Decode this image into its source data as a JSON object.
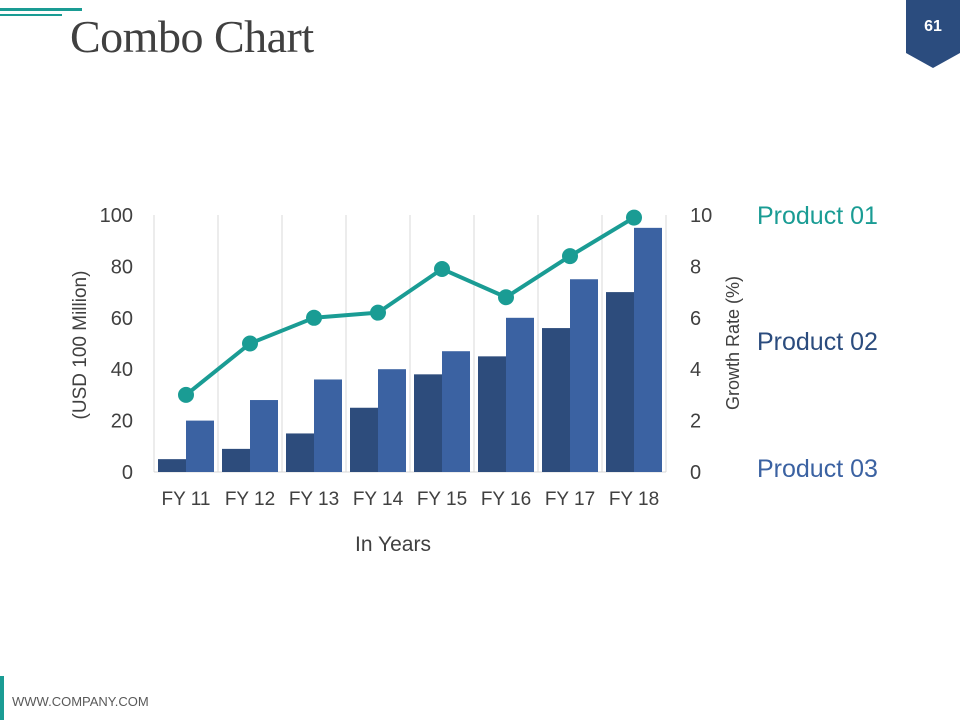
{
  "slide": {
    "title": "Combo Chart",
    "page_number": "61",
    "footer": "WWW.COMPANY.COM"
  },
  "colors": {
    "accent": "#1a9c94",
    "bar_dark": "#2d4c7c",
    "bar_mid": "#3b62a2",
    "text": "#404040",
    "navy": "#2b4c7e"
  },
  "chart_data": {
    "type": "bar",
    "combo": true,
    "title": "Combo Chart",
    "categories": [
      "FY 11",
      "FY 12",
      "FY 13",
      "FY 14",
      "FY 15",
      "FY 16",
      "FY 17",
      "FY 18"
    ],
    "series": [
      {
        "name": "Product 02",
        "type": "bar",
        "axis": "left",
        "values": [
          5,
          9,
          15,
          25,
          38,
          45,
          56,
          70
        ]
      },
      {
        "name": "Product 03",
        "type": "bar",
        "axis": "left",
        "values": [
          20,
          28,
          36,
          40,
          47,
          60,
          75,
          95
        ]
      },
      {
        "name": "Product 01",
        "type": "line",
        "axis": "right",
        "values": [
          3,
          5,
          6,
          6.2,
          7.9,
          6.8,
          8.4,
          9.9
        ]
      }
    ],
    "xlabel": "In Years",
    "ylabel": "(USD 100 Million)",
    "y2label": "Growth Rate (%)",
    "ylim": [
      0,
      100
    ],
    "y2lim": [
      0,
      10
    ],
    "yticks": [
      "0",
      "20",
      "40",
      "60",
      "80",
      "100"
    ],
    "y2ticks": [
      "0",
      "2",
      "4",
      "6",
      "8",
      "10"
    ],
    "grid": "vertical",
    "legend": [
      {
        "label": "Product 01"
      },
      {
        "label": "Product 02"
      },
      {
        "label": "Product 03"
      }
    ],
    "legend_position": "right"
  }
}
